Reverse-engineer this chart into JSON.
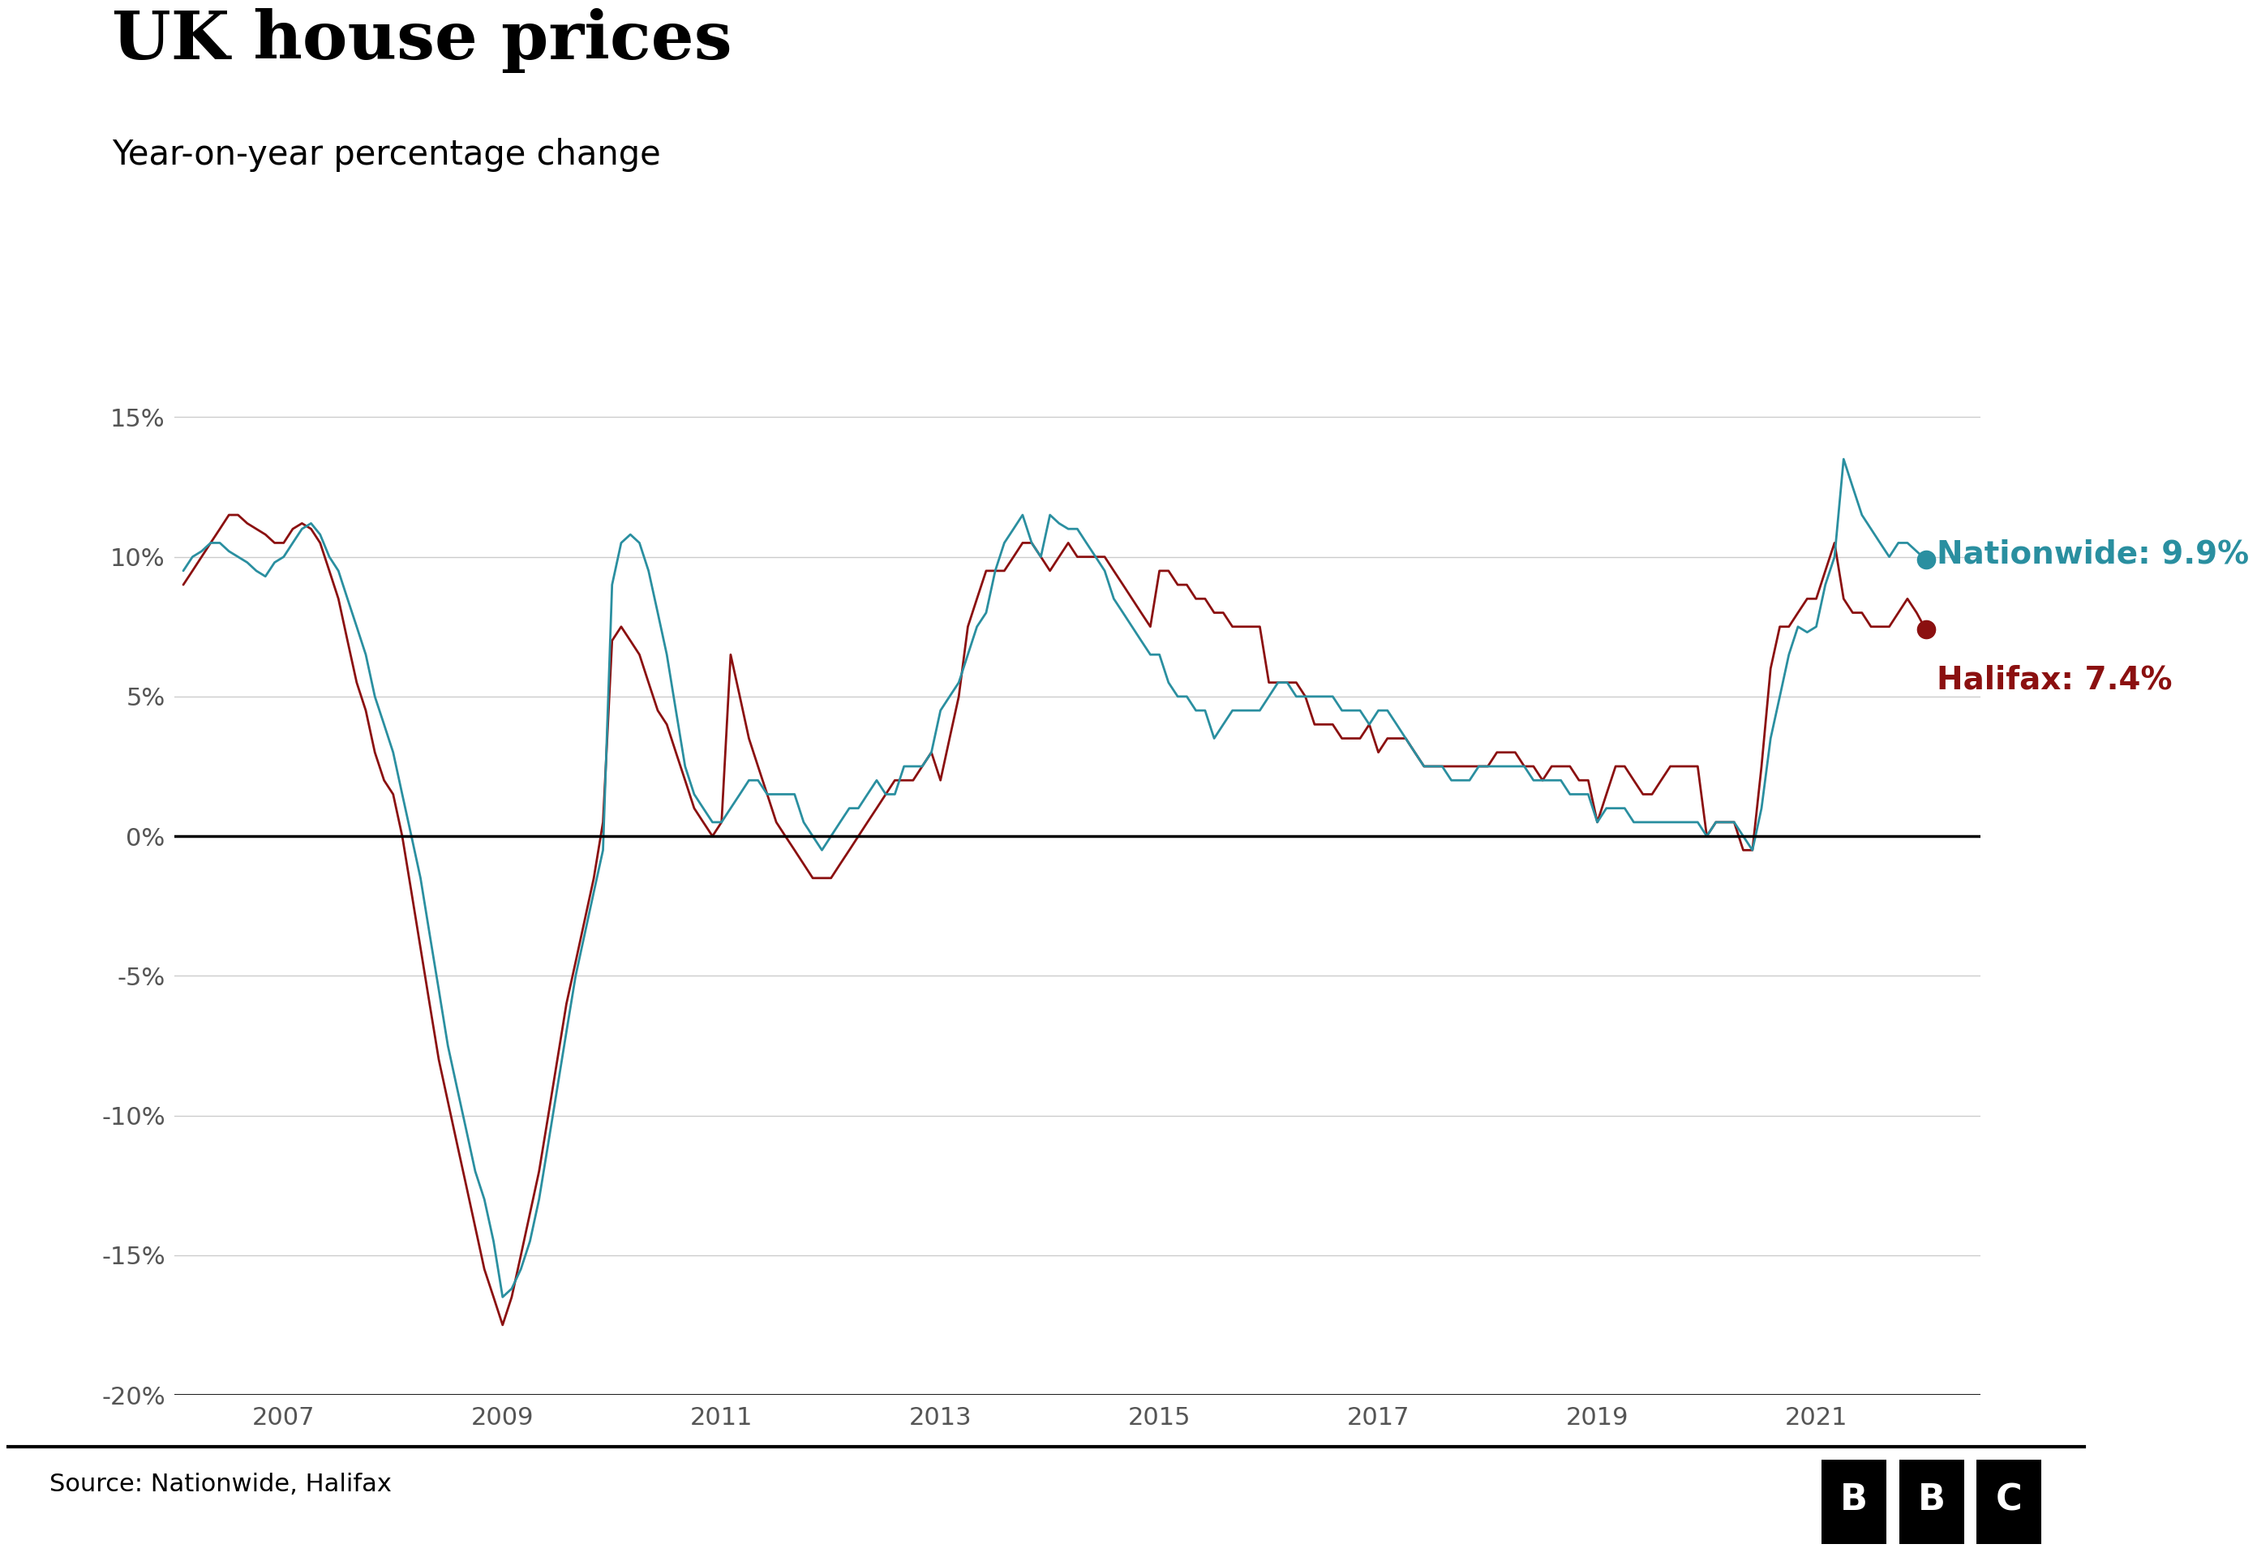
{
  "title": "UK house prices",
  "subtitle": "Year-on-year percentage change",
  "source": "Source: Nationwide, Halifax",
  "nationwide_color": "#2a8fa0",
  "halifax_color": "#8b1010",
  "nationwide_label": "Nationwide: 9.9%",
  "halifax_label": "Halifax: 7.4%",
  "ylim": [
    -20,
    16
  ],
  "yticks": [
    -20,
    -15,
    -10,
    -5,
    0,
    5,
    10,
    15
  ],
  "xticks": [
    2007,
    2009,
    2011,
    2013,
    2015,
    2017,
    2019,
    2021
  ],
  "background_color": "#ffffff",
  "grid_color": "#cccccc",
  "nationwide_x": [
    2006.083,
    2006.167,
    2006.25,
    2006.333,
    2006.417,
    2006.5,
    2006.583,
    2006.667,
    2006.75,
    2006.833,
    2006.917,
    2007.0,
    2007.083,
    2007.167,
    2007.25,
    2007.333,
    2007.417,
    2007.5,
    2007.583,
    2007.667,
    2007.75,
    2007.833,
    2007.917,
    2008.0,
    2008.083,
    2008.167,
    2008.25,
    2008.333,
    2008.417,
    2008.5,
    2008.583,
    2008.667,
    2008.75,
    2008.833,
    2008.917,
    2009.0,
    2009.083,
    2009.167,
    2009.25,
    2009.333,
    2009.417,
    2009.5,
    2009.583,
    2009.667,
    2009.75,
    2009.833,
    2009.917,
    2010.0,
    2010.083,
    2010.167,
    2010.25,
    2010.333,
    2010.417,
    2010.5,
    2010.583,
    2010.667,
    2010.75,
    2010.833,
    2010.917,
    2011.0,
    2011.083,
    2011.167,
    2011.25,
    2011.333,
    2011.417,
    2011.5,
    2011.583,
    2011.667,
    2011.75,
    2011.833,
    2011.917,
    2012.0,
    2012.083,
    2012.167,
    2012.25,
    2012.333,
    2012.417,
    2012.5,
    2012.583,
    2012.667,
    2012.75,
    2012.833,
    2012.917,
    2013.0,
    2013.083,
    2013.167,
    2013.25,
    2013.333,
    2013.417,
    2013.5,
    2013.583,
    2013.667,
    2013.75,
    2013.833,
    2013.917,
    2014.0,
    2014.083,
    2014.167,
    2014.25,
    2014.333,
    2014.417,
    2014.5,
    2014.583,
    2014.667,
    2014.75,
    2014.833,
    2014.917,
    2015.0,
    2015.083,
    2015.167,
    2015.25,
    2015.333,
    2015.417,
    2015.5,
    2015.583,
    2015.667,
    2015.75,
    2015.833,
    2015.917,
    2016.0,
    2016.083,
    2016.167,
    2016.25,
    2016.333,
    2016.417,
    2016.5,
    2016.583,
    2016.667,
    2016.75,
    2016.833,
    2016.917,
    2017.0,
    2017.083,
    2017.167,
    2017.25,
    2017.333,
    2017.417,
    2017.5,
    2017.583,
    2017.667,
    2017.75,
    2017.833,
    2017.917,
    2018.0,
    2018.083,
    2018.167,
    2018.25,
    2018.333,
    2018.417,
    2018.5,
    2018.583,
    2018.667,
    2018.75,
    2018.833,
    2018.917,
    2019.0,
    2019.083,
    2019.167,
    2019.25,
    2019.333,
    2019.417,
    2019.5,
    2019.583,
    2019.667,
    2019.75,
    2019.833,
    2019.917,
    2020.0,
    2020.083,
    2020.167,
    2020.25,
    2020.333,
    2020.417,
    2020.5,
    2020.583,
    2020.667,
    2020.75,
    2020.833,
    2020.917,
    2021.0,
    2021.083,
    2021.167,
    2021.25,
    2021.333,
    2021.417,
    2021.5,
    2021.583,
    2021.667,
    2021.75,
    2021.833,
    2021.917,
    2022.0
  ],
  "nationwide_y": [
    9.5,
    10.0,
    10.2,
    10.5,
    10.5,
    10.2,
    10.0,
    9.8,
    9.5,
    9.3,
    9.8,
    10.0,
    10.5,
    11.0,
    11.2,
    10.8,
    10.0,
    9.5,
    8.5,
    7.5,
    6.5,
    5.0,
    4.0,
    3.0,
    1.5,
    0.0,
    -1.5,
    -3.5,
    -5.5,
    -7.5,
    -9.0,
    -10.5,
    -12.0,
    -13.0,
    -14.5,
    -16.5,
    -16.2,
    -15.5,
    -14.5,
    -13.0,
    -11.0,
    -9.0,
    -7.0,
    -5.0,
    -3.5,
    -2.0,
    -0.5,
    9.0,
    10.5,
    10.8,
    10.5,
    9.5,
    8.0,
    6.5,
    4.5,
    2.5,
    1.5,
    1.0,
    0.5,
    0.5,
    1.0,
    1.5,
    2.0,
    2.0,
    1.5,
    1.5,
    1.5,
    1.5,
    0.5,
    0.0,
    -0.5,
    0.0,
    0.5,
    1.0,
    1.0,
    1.5,
    2.0,
    1.5,
    1.5,
    2.5,
    2.5,
    2.5,
    3.0,
    4.5,
    5.0,
    5.5,
    6.5,
    7.5,
    8.0,
    9.5,
    10.5,
    11.0,
    11.5,
    10.5,
    10.0,
    11.5,
    11.2,
    11.0,
    11.0,
    10.5,
    10.0,
    9.5,
    8.5,
    8.0,
    7.5,
    7.0,
    6.5,
    6.5,
    5.5,
    5.0,
    5.0,
    4.5,
    4.5,
    3.5,
    4.0,
    4.5,
    4.5,
    4.5,
    4.5,
    5.0,
    5.5,
    5.5,
    5.0,
    5.0,
    5.0,
    5.0,
    5.0,
    4.5,
    4.5,
    4.5,
    4.0,
    4.5,
    4.5,
    4.0,
    3.5,
    3.0,
    2.5,
    2.5,
    2.5,
    2.0,
    2.0,
    2.0,
    2.5,
    2.5,
    2.5,
    2.5,
    2.5,
    2.5,
    2.0,
    2.0,
    2.0,
    2.0,
    1.5,
    1.5,
    1.5,
    0.5,
    1.0,
    1.0,
    1.0,
    0.5,
    0.5,
    0.5,
    0.5,
    0.5,
    0.5,
    0.5,
    0.5,
    0.0,
    0.5,
    0.5,
    0.5,
    0.0,
    -0.5,
    1.0,
    3.5,
    5.0,
    6.5,
    7.5,
    7.3,
    7.5,
    9.0,
    10.0,
    13.5,
    12.5,
    11.5,
    11.0,
    10.5,
    10.0,
    10.5,
    10.5,
    10.2,
    9.9
  ],
  "halifax_x": [
    2006.083,
    2006.167,
    2006.25,
    2006.333,
    2006.417,
    2006.5,
    2006.583,
    2006.667,
    2006.75,
    2006.833,
    2006.917,
    2007.0,
    2007.083,
    2007.167,
    2007.25,
    2007.333,
    2007.417,
    2007.5,
    2007.583,
    2007.667,
    2007.75,
    2007.833,
    2007.917,
    2008.0,
    2008.083,
    2008.167,
    2008.25,
    2008.333,
    2008.417,
    2008.5,
    2008.583,
    2008.667,
    2008.75,
    2008.833,
    2008.917,
    2009.0,
    2009.083,
    2009.167,
    2009.25,
    2009.333,
    2009.417,
    2009.5,
    2009.583,
    2009.667,
    2009.75,
    2009.833,
    2009.917,
    2010.0,
    2010.083,
    2010.167,
    2010.25,
    2010.333,
    2010.417,
    2010.5,
    2010.583,
    2010.667,
    2010.75,
    2010.833,
    2010.917,
    2011.0,
    2011.083,
    2011.167,
    2011.25,
    2011.333,
    2011.417,
    2011.5,
    2011.583,
    2011.667,
    2011.75,
    2011.833,
    2011.917,
    2012.0,
    2012.083,
    2012.167,
    2012.25,
    2012.333,
    2012.417,
    2012.5,
    2012.583,
    2012.667,
    2012.75,
    2012.833,
    2012.917,
    2013.0,
    2013.083,
    2013.167,
    2013.25,
    2013.333,
    2013.417,
    2013.5,
    2013.583,
    2013.667,
    2013.75,
    2013.833,
    2013.917,
    2014.0,
    2014.083,
    2014.167,
    2014.25,
    2014.333,
    2014.417,
    2014.5,
    2014.583,
    2014.667,
    2014.75,
    2014.833,
    2014.917,
    2015.0,
    2015.083,
    2015.167,
    2015.25,
    2015.333,
    2015.417,
    2015.5,
    2015.583,
    2015.667,
    2015.75,
    2015.833,
    2015.917,
    2016.0,
    2016.083,
    2016.167,
    2016.25,
    2016.333,
    2016.417,
    2016.5,
    2016.583,
    2016.667,
    2016.75,
    2016.833,
    2016.917,
    2017.0,
    2017.083,
    2017.167,
    2017.25,
    2017.333,
    2017.417,
    2017.5,
    2017.583,
    2017.667,
    2017.75,
    2017.833,
    2017.917,
    2018.0,
    2018.083,
    2018.167,
    2018.25,
    2018.333,
    2018.417,
    2018.5,
    2018.583,
    2018.667,
    2018.75,
    2018.833,
    2018.917,
    2019.0,
    2019.083,
    2019.167,
    2019.25,
    2019.333,
    2019.417,
    2019.5,
    2019.583,
    2019.667,
    2019.75,
    2019.833,
    2019.917,
    2020.0,
    2020.083,
    2020.167,
    2020.25,
    2020.333,
    2020.417,
    2020.5,
    2020.583,
    2020.667,
    2020.75,
    2020.833,
    2020.917,
    2021.0,
    2021.083,
    2021.167,
    2021.25,
    2021.333,
    2021.417,
    2021.5,
    2021.583,
    2021.667,
    2021.75,
    2021.833,
    2021.917,
    2022.0
  ],
  "halifax_y": [
    9.0,
    9.5,
    10.0,
    10.5,
    11.0,
    11.5,
    11.5,
    11.2,
    11.0,
    10.8,
    10.5,
    10.5,
    11.0,
    11.2,
    11.0,
    10.5,
    9.5,
    8.5,
    7.0,
    5.5,
    4.5,
    3.0,
    2.0,
    1.5,
    0.0,
    -2.0,
    -4.0,
    -6.0,
    -8.0,
    -9.5,
    -11.0,
    -12.5,
    -14.0,
    -15.5,
    -16.5,
    -17.5,
    -16.5,
    -15.0,
    -13.5,
    -12.0,
    -10.0,
    -8.0,
    -6.0,
    -4.5,
    -3.0,
    -1.5,
    0.5,
    7.0,
    7.5,
    7.0,
    6.5,
    5.5,
    4.5,
    4.0,
    3.0,
    2.0,
    1.0,
    0.5,
    0.0,
    0.5,
    6.5,
    5.0,
    3.5,
    2.5,
    1.5,
    0.5,
    0.0,
    -0.5,
    -1.0,
    -1.5,
    -1.5,
    -1.5,
    -1.0,
    -0.5,
    0.0,
    0.5,
    1.0,
    1.5,
    2.0,
    2.0,
    2.0,
    2.5,
    3.0,
    2.0,
    3.5,
    5.0,
    7.5,
    8.5,
    9.5,
    9.5,
    9.5,
    10.0,
    10.5,
    10.5,
    10.0,
    9.5,
    10.0,
    10.5,
    10.0,
    10.0,
    10.0,
    10.0,
    9.5,
    9.0,
    8.5,
    8.0,
    7.5,
    9.5,
    9.5,
    9.0,
    9.0,
    8.5,
    8.5,
    8.0,
    8.0,
    7.5,
    7.5,
    7.5,
    7.5,
    5.5,
    5.5,
    5.5,
    5.5,
    5.0,
    4.0,
    4.0,
    4.0,
    3.5,
    3.5,
    3.5,
    4.0,
    3.0,
    3.5,
    3.5,
    3.5,
    3.0,
    2.5,
    2.5,
    2.5,
    2.5,
    2.5,
    2.5,
    2.5,
    2.5,
    3.0,
    3.0,
    3.0,
    2.5,
    2.5,
    2.0,
    2.5,
    2.5,
    2.5,
    2.0,
    2.0,
    0.5,
    1.5,
    2.5,
    2.5,
    2.0,
    1.5,
    1.5,
    2.0,
    2.5,
    2.5,
    2.5,
    2.5,
    0.0,
    0.5,
    0.5,
    0.5,
    -0.5,
    -0.5,
    2.5,
    6.0,
    7.5,
    7.5,
    8.0,
    8.5,
    8.5,
    9.5,
    10.5,
    8.5,
    8.0,
    8.0,
    7.5,
    7.5,
    7.5,
    8.0,
    8.5,
    8.0,
    7.4
  ]
}
